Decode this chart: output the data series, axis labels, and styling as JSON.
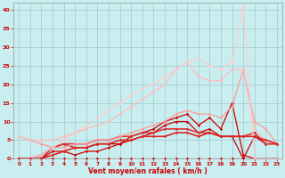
{
  "bg_color": "#c8eef0",
  "grid_color": "#a0c8cc",
  "xlabel": "Vent moyen/en rafales ( km/h )",
  "xlabel_color": "#cc0000",
  "tick_color": "#cc0000",
  "xlim": [
    -0.5,
    23.5
  ],
  "ylim": [
    0,
    42
  ],
  "yticks": [
    0,
    5,
    10,
    15,
    20,
    25,
    30,
    35,
    40
  ],
  "xticks": [
    0,
    1,
    2,
    3,
    4,
    5,
    6,
    7,
    8,
    9,
    10,
    11,
    12,
    13,
    14,
    15,
    16,
    17,
    18,
    19,
    20,
    21,
    22,
    23
  ],
  "series": [
    {
      "x": [
        0,
        1,
        2,
        3,
        4,
        5,
        6,
        7,
        8,
        9,
        10,
        11,
        12,
        13,
        14,
        15,
        16,
        17,
        18,
        19,
        20,
        21,
        22,
        23
      ],
      "y": [
        0,
        0,
        0,
        0,
        0,
        0,
        0,
        0,
        0,
        0,
        0,
        0,
        0,
        0,
        0,
        0,
        0,
        0,
        0,
        0,
        0,
        0,
        0,
        0
      ],
      "color": "#cc0000",
      "lw": 0.8,
      "marker": "D",
      "ms": 1.5
    },
    {
      "x": [
        0,
        1,
        2,
        3,
        4,
        5,
        6,
        7,
        8,
        9,
        10,
        11,
        12,
        13,
        14,
        15,
        16,
        17,
        18,
        19,
        20,
        21,
        22,
        23
      ],
      "y": [
        0,
        0,
        0,
        2,
        2,
        1,
        2,
        2,
        3,
        4,
        5,
        6,
        7,
        9,
        10,
        10,
        7,
        8,
        6,
        6,
        0,
        6,
        4,
        4
      ],
      "color": "#cc0000",
      "lw": 0.9,
      "marker": "D",
      "ms": 1.5
    },
    {
      "x": [
        0,
        1,
        2,
        3,
        4,
        5,
        6,
        7,
        8,
        9,
        10,
        11,
        12,
        13,
        14,
        15,
        16,
        17,
        18,
        19,
        20,
        21,
        22,
        23
      ],
      "y": [
        0,
        0,
        0,
        3,
        4,
        3,
        3,
        4,
        4,
        4,
        6,
        7,
        8,
        10,
        11,
        12,
        9,
        11,
        8,
        15,
        1,
        0,
        0,
        0
      ],
      "color": "#cc0000",
      "lw": 0.9,
      "marker": "D",
      "ms": 1.5
    },
    {
      "x": [
        0,
        1,
        2,
        3,
        4,
        5,
        6,
        7,
        8,
        9,
        10,
        11,
        12,
        13,
        14,
        15,
        16,
        17,
        18,
        19,
        20,
        21,
        22,
        23
      ],
      "y": [
        0,
        0,
        1,
        3,
        4,
        4,
        4,
        5,
        5,
        6,
        6,
        7,
        7,
        8,
        8,
        8,
        7,
        7,
        6,
        6,
        6,
        7,
        4,
        4
      ],
      "color": "#dd3333",
      "lw": 1.2,
      "marker": "D",
      "ms": 1.5
    },
    {
      "x": [
        0,
        1,
        2,
        3,
        4,
        5,
        6,
        7,
        8,
        9,
        10,
        11,
        12,
        13,
        14,
        15,
        16,
        17,
        18,
        19,
        20,
        21,
        22,
        23
      ],
      "y": [
        6,
        5,
        4,
        3,
        3,
        4,
        4,
        5,
        5,
        6,
        7,
        8,
        9,
        10,
        12,
        13,
        12,
        12,
        11,
        14,
        24,
        10,
        8,
        4
      ],
      "color": "#ff9999",
      "lw": 0.9,
      "marker": "D",
      "ms": 1.5
    },
    {
      "x": [
        0,
        1,
        2,
        3,
        4,
        5,
        6,
        7,
        8,
        9,
        10,
        11,
        12,
        13,
        14,
        15,
        16,
        17,
        18,
        19,
        20,
        21,
        22,
        23
      ],
      "y": [
        6,
        5,
        5,
        5,
        6,
        7,
        8,
        9,
        10,
        12,
        14,
        16,
        18,
        20,
        24,
        26,
        22,
        21,
        21,
        24,
        24,
        8,
        5,
        4
      ],
      "color": "#ffbbbb",
      "lw": 0.9,
      "marker": "D",
      "ms": 1.5
    },
    {
      "x": [
        0,
        1,
        2,
        3,
        4,
        5,
        6,
        7,
        8,
        9,
        10,
        11,
        12,
        13,
        14,
        15,
        16,
        17,
        18,
        19,
        20,
        21,
        22,
        23
      ],
      "y": [
        0,
        0,
        1,
        3,
        5,
        7,
        9,
        11,
        13,
        15,
        17,
        19,
        20,
        22,
        24,
        26,
        27,
        25,
        24,
        26,
        41,
        0,
        0,
        0
      ],
      "color": "#ffcccc",
      "lw": 0.9,
      "marker": "D",
      "ms": 1.5
    },
    {
      "x": [
        0,
        1,
        2,
        3,
        4,
        5,
        6,
        7,
        8,
        9,
        10,
        11,
        12,
        13,
        14,
        15,
        16,
        17,
        18,
        19,
        20,
        21,
        22,
        23
      ],
      "y": [
        0,
        0,
        0,
        1,
        2,
        3,
        3,
        4,
        4,
        5,
        5,
        6,
        6,
        6,
        7,
        7,
        6,
        7,
        6,
        6,
        6,
        6,
        5,
        4
      ],
      "color": "#dd2222",
      "lw": 1.2,
      "marker": "D",
      "ms": 1.5
    }
  ]
}
